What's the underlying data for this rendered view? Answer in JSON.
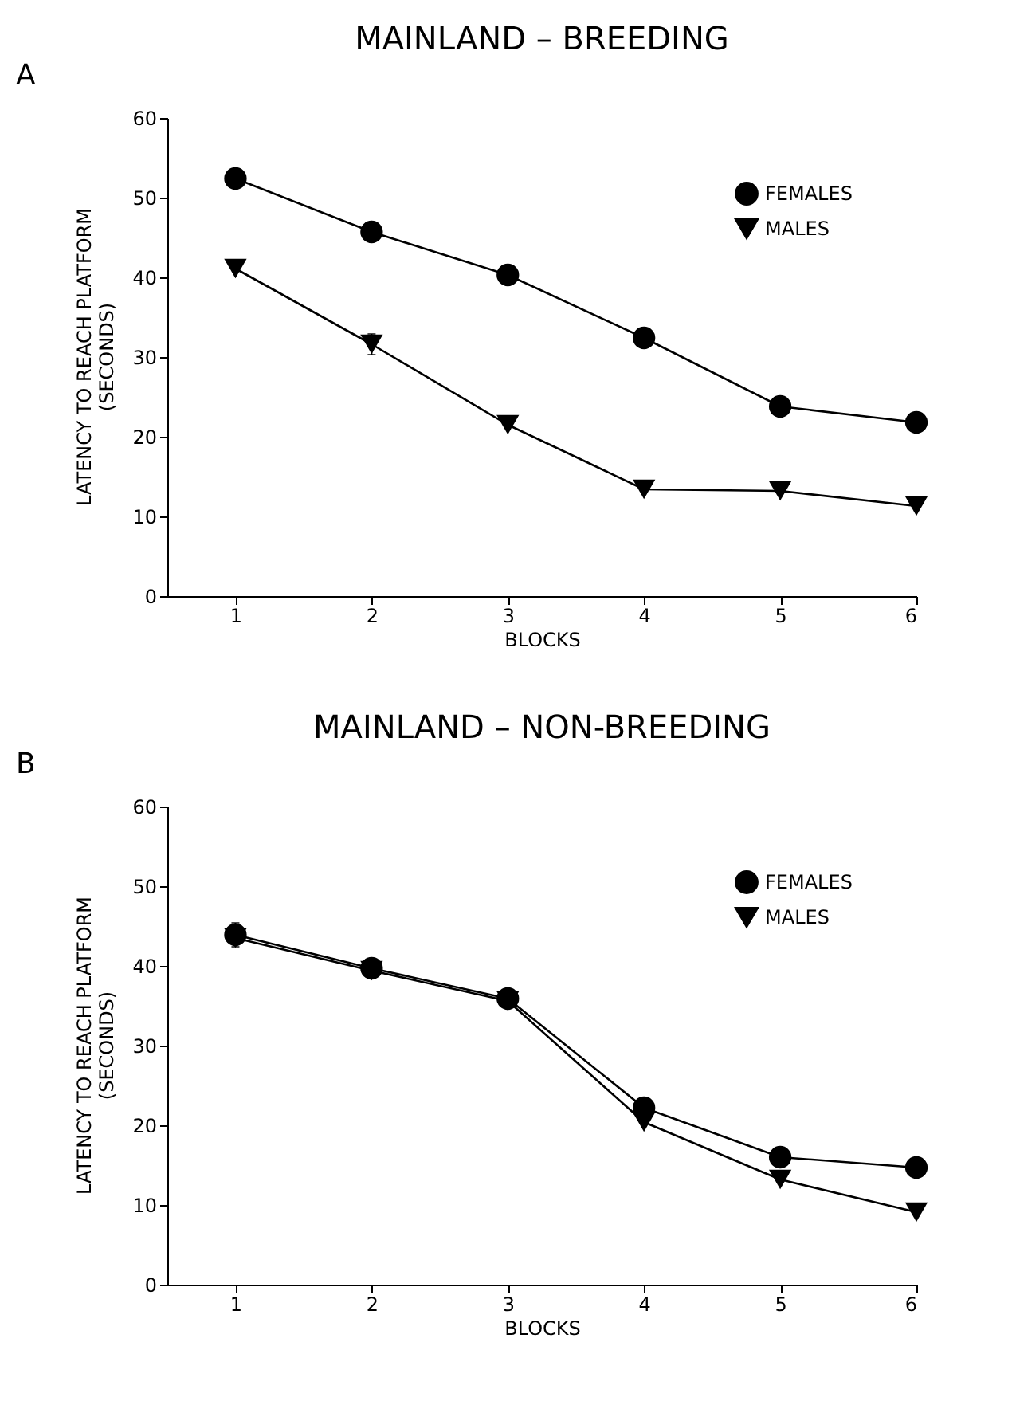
{
  "chart_data": [
    {
      "type": "line",
      "title": "MAINLAND – BREEDING",
      "annotations": [
        "A"
      ],
      "xlabel": "BLOCKS",
      "ylabel": "LATENCY TO REACH PLATFORM\n(SECONDS)",
      "x": [
        1,
        2,
        3,
        4,
        5,
        6
      ],
      "xlim": [
        0.5,
        6
      ],
      "xticks": [
        1,
        2,
        3,
        4,
        5,
        6
      ],
      "ylim": [
        0,
        60
      ],
      "yticks": [
        0,
        10,
        20,
        30,
        40,
        50,
        60
      ],
      "grid": false,
      "legend": "top right",
      "series": [
        {
          "name": "FEMALES",
          "color": "#000000",
          "marker": "circle",
          "values": [
            52.4,
            45.7,
            40.3,
            32.4,
            23.8,
            21.8
          ]
        },
        {
          "name": "MALES",
          "color": "#000000",
          "marker": "triangle",
          "values": [
            41.1,
            31.6,
            21.5,
            13.4,
            13.2,
            11.3
          ],
          "errors": [
            null,
            1.3,
            null,
            null,
            null,
            null
          ]
        }
      ]
    },
    {
      "type": "line",
      "title": "MAINLAND – NON-BREEDING",
      "annotations": [
        "B"
      ],
      "xlabel": "BLOCKS",
      "ylabel": "LATENCY TO REACH PLATFORM\n(SECONDS)",
      "x": [
        1,
        2,
        3,
        4,
        5,
        6
      ],
      "xlim": [
        0.5,
        6
      ],
      "xticks": [
        1,
        2,
        3,
        4,
        5,
        6
      ],
      "ylim": [
        0,
        60
      ],
      "yticks": [
        0,
        10,
        20,
        30,
        40,
        50,
        60
      ],
      "grid": false,
      "legend": "top right",
      "series": [
        {
          "name": "FEMALES",
          "color": "#000000",
          "marker": "circle",
          "values": [
            43.9,
            39.7,
            35.9,
            22.2,
            16.0,
            14.7
          ],
          "errors": [
            1.5,
            null,
            null,
            null,
            null,
            null
          ]
        },
        {
          "name": "MALES",
          "color": "#000000",
          "marker": "triangle",
          "values": [
            43.5,
            39.4,
            35.6,
            20.4,
            13.2,
            9.1
          ]
        }
      ]
    }
  ]
}
